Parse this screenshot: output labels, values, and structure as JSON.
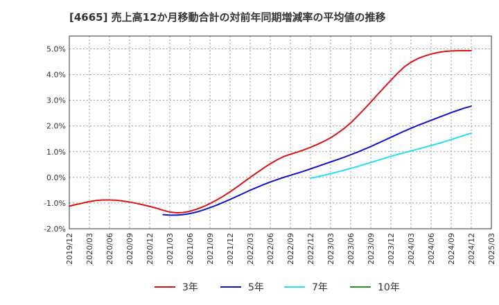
{
  "chart_data": {
    "type": "line",
    "title": "[4665]  売上高12か月移動合計の対前年同期増減率の平均値の推移",
    "xlabel": "",
    "ylabel": "",
    "ylim": [
      -2.0,
      5.5
    ],
    "y_ticks": [
      "5.0%",
      "4.0%",
      "3.0%",
      "2.0%",
      "1.0%",
      "0.0%",
      "-1.0%",
      "-2.0%"
    ],
    "x_ticks": [
      "2019/12",
      "2020/03",
      "2020/06",
      "2020/09",
      "2020/12",
      "2021/03",
      "2021/06",
      "2021/09",
      "2021/12",
      "2022/03",
      "2022/06",
      "2022/09",
      "2022/12",
      "2023/03",
      "2023/06",
      "2023/09",
      "2023/12",
      "2024/03",
      "2024/06",
      "2024/09",
      "2024/12",
      "2025/03"
    ],
    "grid": true,
    "legend_position": "bottom",
    "series": [
      {
        "name": "3年",
        "color": "#dd1111",
        "x": [
          "2019/12",
          "2020/01",
          "2020/02",
          "2020/03",
          "2020/04",
          "2020/05",
          "2020/06",
          "2020/07",
          "2020/08",
          "2020/09",
          "2020/10",
          "2020/11",
          "2020/12",
          "2021/01",
          "2021/02",
          "2021/03",
          "2021/04",
          "2021/05",
          "2021/06",
          "2021/07",
          "2021/08",
          "2021/09",
          "2021/10",
          "2021/11",
          "2021/12",
          "2022/01",
          "2022/02",
          "2022/03",
          "2022/04",
          "2022/05",
          "2022/06",
          "2022/07",
          "2022/08",
          "2022/09",
          "2022/10",
          "2022/11",
          "2022/12",
          "2023/01",
          "2023/02",
          "2023/03",
          "2023/04",
          "2023/05",
          "2023/06",
          "2023/07",
          "2023/08",
          "2023/09",
          "2023/10",
          "2023/11",
          "2023/12",
          "2024/01",
          "2024/02",
          "2024/03",
          "2024/04",
          "2024/05",
          "2024/06",
          "2024/07",
          "2024/08",
          "2024/09",
          "2024/10",
          "2024/11",
          "2024/12"
        ],
        "values": [
          -1.12,
          -1.06,
          -1.0,
          -0.94,
          -0.9,
          -0.88,
          -0.88,
          -0.89,
          -0.92,
          -0.96,
          -1.01,
          -1.07,
          -1.13,
          -1.2,
          -1.28,
          -1.35,
          -1.38,
          -1.37,
          -1.32,
          -1.24,
          -1.14,
          -1.02,
          -0.88,
          -0.73,
          -0.56,
          -0.38,
          -0.19,
          0.0,
          0.18,
          0.36,
          0.53,
          0.68,
          0.81,
          0.9,
          0.98,
          1.07,
          1.17,
          1.28,
          1.4,
          1.54,
          1.71,
          1.9,
          2.12,
          2.38,
          2.65,
          2.93,
          3.22,
          3.5,
          3.78,
          4.05,
          4.3,
          4.48,
          4.62,
          4.72,
          4.8,
          4.86,
          4.9,
          4.92,
          4.93,
          4.93,
          4.93
        ]
      },
      {
        "name": "5年",
        "color": "#1111cc",
        "x": [
          "2021/02",
          "2021/03",
          "2021/04",
          "2021/05",
          "2021/06",
          "2021/07",
          "2021/08",
          "2021/09",
          "2021/10",
          "2021/11",
          "2021/12",
          "2022/01",
          "2022/02",
          "2022/03",
          "2022/04",
          "2022/05",
          "2022/06",
          "2022/07",
          "2022/08",
          "2022/09",
          "2022/10",
          "2022/11",
          "2022/12",
          "2023/01",
          "2023/02",
          "2023/03",
          "2023/04",
          "2023/05",
          "2023/06",
          "2023/07",
          "2023/08",
          "2023/09",
          "2023/10",
          "2023/11",
          "2023/12",
          "2024/01",
          "2024/02",
          "2024/03",
          "2024/04",
          "2024/05",
          "2024/06",
          "2024/07",
          "2024/08",
          "2024/09",
          "2024/10",
          "2024/11",
          "2024/12"
        ],
        "values": [
          -1.45,
          -1.47,
          -1.47,
          -1.45,
          -1.41,
          -1.35,
          -1.27,
          -1.18,
          -1.08,
          -0.97,
          -0.86,
          -0.74,
          -0.62,
          -0.5,
          -0.39,
          -0.28,
          -0.18,
          -0.09,
          0.0,
          0.08,
          0.16,
          0.24,
          0.33,
          0.42,
          0.51,
          0.6,
          0.69,
          0.78,
          0.88,
          0.98,
          1.09,
          1.2,
          1.32,
          1.44,
          1.56,
          1.68,
          1.8,
          1.91,
          2.02,
          2.12,
          2.22,
          2.32,
          2.42,
          2.52,
          2.61,
          2.7,
          2.77
        ]
      },
      {
        "name": "7年",
        "color": "#22e0ee",
        "x": [
          "2022/12",
          "2023/01",
          "2023/02",
          "2023/03",
          "2023/04",
          "2023/05",
          "2023/06",
          "2023/07",
          "2023/08",
          "2023/09",
          "2023/10",
          "2023/11",
          "2023/12",
          "2024/01",
          "2024/02",
          "2024/03",
          "2024/04",
          "2024/05",
          "2024/06",
          "2024/07",
          "2024/08",
          "2024/09",
          "2024/10",
          "2024/11",
          "2024/12"
        ],
        "values": [
          -0.03,
          0.02,
          0.08,
          0.14,
          0.21,
          0.28,
          0.35,
          0.42,
          0.5,
          0.58,
          0.66,
          0.74,
          0.82,
          0.89,
          0.96,
          1.03,
          1.1,
          1.17,
          1.24,
          1.31,
          1.39,
          1.47,
          1.56,
          1.64,
          1.72
        ]
      },
      {
        "name": "10年",
        "color": "#229922",
        "x": [],
        "values": []
      }
    ]
  }
}
